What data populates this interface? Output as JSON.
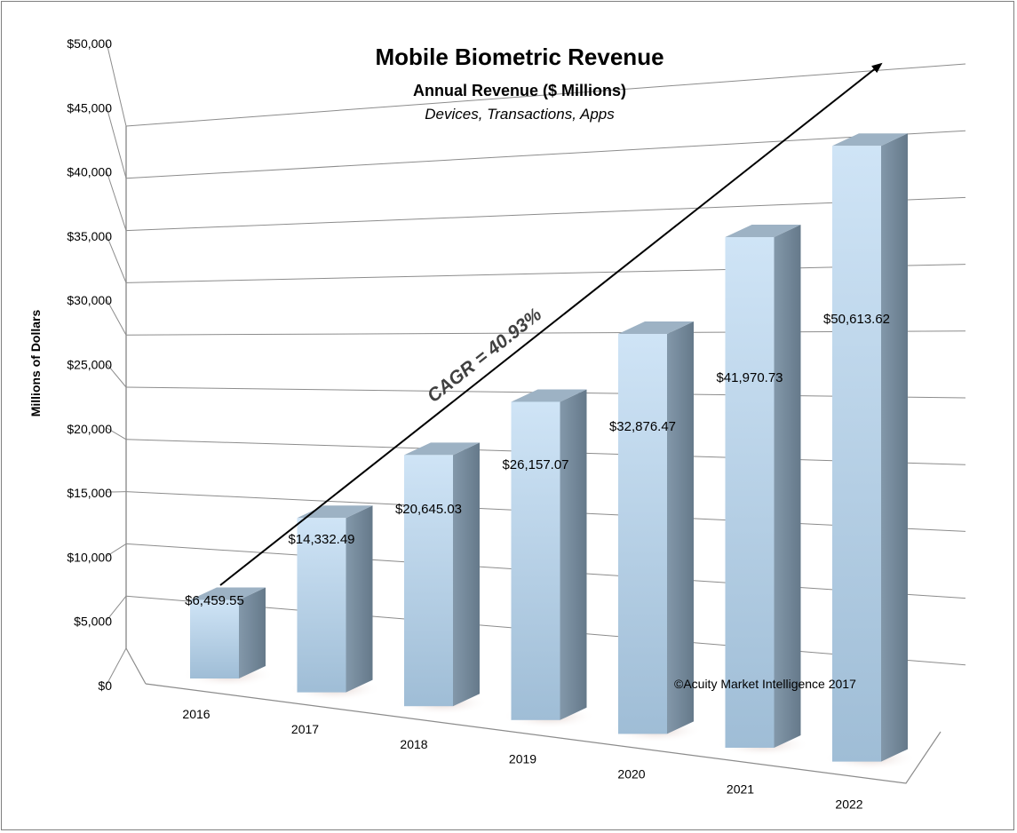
{
  "chart_data": {
    "type": "bar",
    "title": "Mobile Biometric Revenue",
    "subtitle": "Annual Revenue ($ Millions)",
    "subtitle2": "Devices, Transactions, Apps",
    "ylabel": "Millions of Dollars",
    "xlabel": "",
    "ylim": [
      0,
      50000
    ],
    "yticks": [
      "$0",
      "$5,000",
      "$10,000",
      "$15,000",
      "$20,000",
      "$25,000",
      "$30,000",
      "$35,000",
      "$40,000",
      "$45,000",
      "$50,000"
    ],
    "categories": [
      "2016",
      "2017",
      "2018",
      "2019",
      "2020",
      "2021",
      "2022"
    ],
    "values": [
      6459.55,
      14332.49,
      20645.03,
      26157.07,
      32876.47,
      41970.73,
      50613.62
    ],
    "data_labels": [
      "$6,459.55",
      "$14,332.49",
      "$20,645.03",
      "$26,157.07",
      "$32,876.47",
      "$41,970.73",
      "$50,613.62"
    ],
    "annotation": "CAGR = 40.93%",
    "copyright": "©Acuity Market Intelligence 2017",
    "grid": true,
    "colors": {
      "bar_front": "#bcd8ee",
      "bar_side": "#7f95a8",
      "bar_top": "#9db2c4",
      "grid": "#8c8c8c",
      "arrow": "#000000"
    }
  }
}
